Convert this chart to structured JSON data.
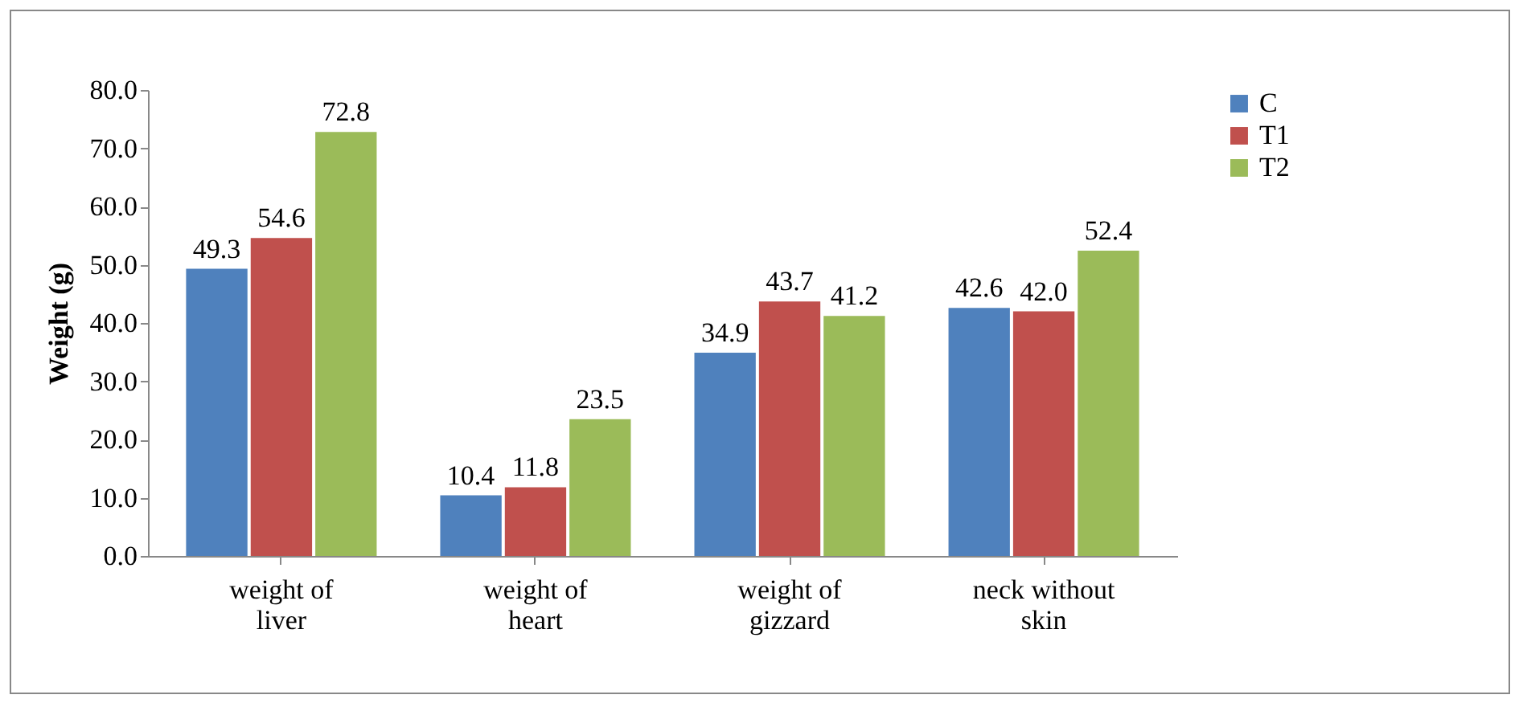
{
  "chart_data": {
    "type": "bar",
    "ylabel": "Weight (g)",
    "categories": [
      "weight of liver",
      "weight of heart",
      "weight of gizzard",
      "neck without skin"
    ],
    "series": [
      {
        "name": "C",
        "color": "#4f81bd",
        "values": [
          49.3,
          10.4,
          34.9,
          42.6
        ],
        "value_labels": [
          "49.3",
          "10.4",
          "34.9",
          "42.6"
        ]
      },
      {
        "name": "T1",
        "color": "#c0504d",
        "values": [
          54.6,
          11.8,
          43.7,
          42.0
        ],
        "value_labels": [
          "54.6",
          "11.8",
          "43.7",
          "42.0"
        ]
      },
      {
        "name": "T2",
        "color": "#9bbb59",
        "values": [
          72.8,
          23.5,
          41.2,
          52.4
        ],
        "value_labels": [
          "72.8",
          "23.5",
          "41.2",
          "52.4"
        ]
      }
    ],
    "ylim": [
      0,
      80
    ],
    "yticks": [
      {
        "value": 0,
        "label": "0.0"
      },
      {
        "value": 10,
        "label": "10.0"
      },
      {
        "value": 20,
        "label": "20.0"
      },
      {
        "value": 30,
        "label": "30.0"
      },
      {
        "value": 40,
        "label": "40.0"
      },
      {
        "value": 50,
        "label": "50.0"
      },
      {
        "value": 60,
        "label": "60.0"
      },
      {
        "value": 70,
        "label": "70.0"
      },
      {
        "value": 80,
        "label": "80.0"
      }
    ],
    "grid": false,
    "legend": "right"
  }
}
